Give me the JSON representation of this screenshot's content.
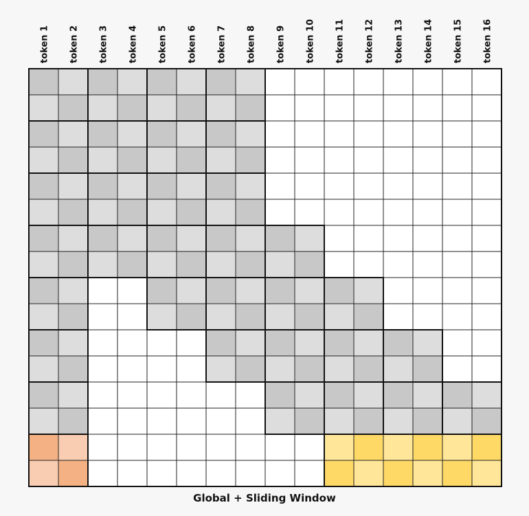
{
  "caption": "Global + Sliding Window",
  "tokens": [
    "token 1",
    "token 2",
    "token 3",
    "token 4",
    "token 5",
    "token 6",
    "token 7",
    "token 8",
    "token 9",
    "token 10",
    "token 11",
    "token 12",
    "token 13",
    "token 14",
    "token 15",
    "token 16"
  ],
  "grid": {
    "columns": 16,
    "rows": 16
  },
  "colors": {
    "background": "#f7f7f7",
    "empty_cell": "#ffffff",
    "attended_light": "#dddddd",
    "attended_dark": "#c8c8c8",
    "global_token_light": "#f8cdb2",
    "global_token_dark": "#f4b183",
    "global_row_light": "#ffe699",
    "global_row_dark": "#ffd966",
    "grid_line": "#222222",
    "block_border": "#111111"
  },
  "pattern": {
    "global_columns": [
      1,
      2
    ],
    "global_rows": [
      15,
      16
    ],
    "block_size": 2,
    "window_size_tokens": 8,
    "note_visible": false
  }
}
